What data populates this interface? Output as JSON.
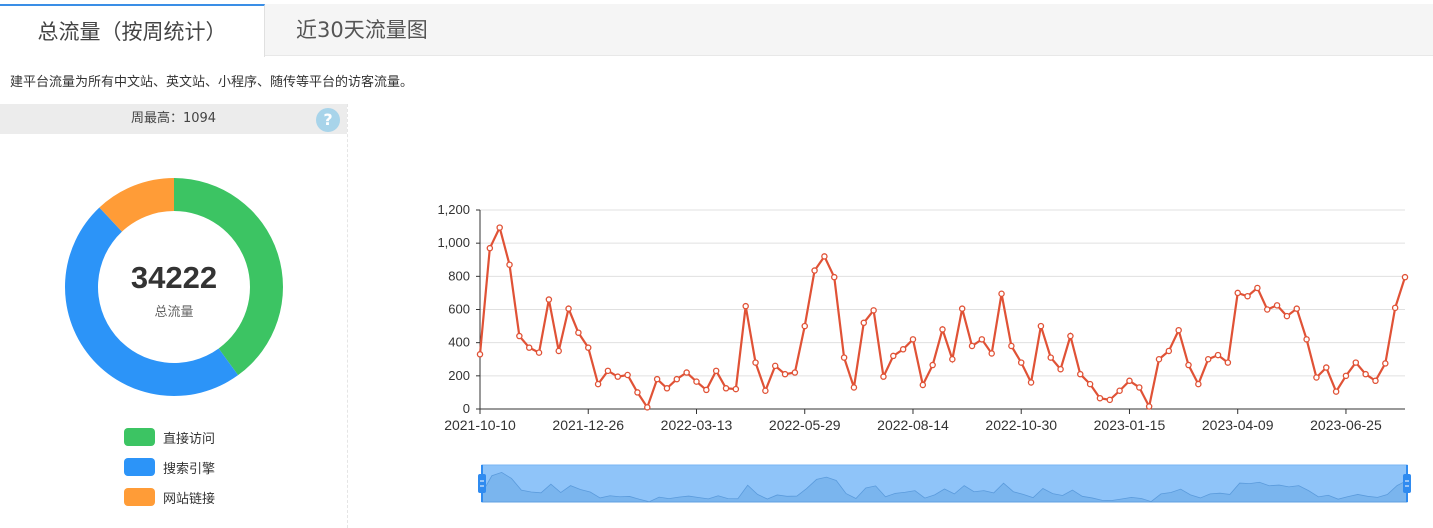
{
  "tabs": [
    {
      "label": "总流量（按周统计）",
      "active": true
    },
    {
      "label": "近30天流量图",
      "active": false
    }
  ],
  "description": "建平台流量为所有中文站、英文站、小程序、随传等平台的访客流量。",
  "summary": {
    "week_max_text": "周最高：1094",
    "help_icon_text": "?",
    "total_value": "34222",
    "total_label": "总流量"
  },
  "donut": {
    "segments": [
      {
        "name": "直接访问",
        "value": 0.4,
        "color": "#3cc463"
      },
      {
        "name": "搜索引擎",
        "value": 0.48,
        "color": "#2c94f8"
      },
      {
        "name": "网站链接",
        "value": 0.12,
        "color": "#ff9c37"
      }
    ]
  },
  "legend": [
    {
      "label": "直接访问",
      "color": "#3cc463"
    },
    {
      "label": "搜索引擎",
      "color": "#2c94f8"
    },
    {
      "label": "网站链接",
      "color": "#ff9c37"
    }
  ],
  "chart_data": {
    "type": "line",
    "x_tick_labels": [
      "2021-10-10",
      "2021-12-26",
      "2022-03-13",
      "2022-05-29",
      "2022-08-14",
      "2022-10-30",
      "2023-01-15",
      "2023-04-09",
      "2023-06-25"
    ],
    "y_tick_labels": [
      "0",
      "200",
      "400",
      "600",
      "800",
      "1,000",
      "1,200"
    ],
    "ylim": [
      0,
      1200
    ],
    "grid": true,
    "line_color": "#e05236",
    "series": [
      {
        "values": [
          330,
          970,
          1094,
          870,
          440,
          370,
          340,
          660,
          350,
          605,
          460,
          370,
          150,
          230,
          195,
          205,
          100,
          10,
          180,
          125,
          180,
          220,
          165,
          115,
          230,
          125,
          120,
          620,
          280,
          110,
          260,
          210,
          220,
          500,
          835,
          920,
          795,
          310,
          130,
          520,
          595,
          195,
          320,
          360,
          420,
          145,
          265,
          480,
          300,
          605,
          380,
          420,
          335,
          695,
          380,
          280,
          160,
          500,
          310,
          240,
          440,
          210,
          150,
          65,
          55,
          110,
          170,
          130,
          15,
          300,
          350,
          475,
          265,
          150,
          300,
          325,
          280,
          700,
          680,
          730,
          600,
          625,
          560,
          605,
          420,
          190,
          250,
          105,
          200,
          280,
          210,
          170,
          275,
          610,
          795
        ]
      }
    ],
    "slider": {
      "start_fraction": 0,
      "end_fraction": 1
    }
  }
}
